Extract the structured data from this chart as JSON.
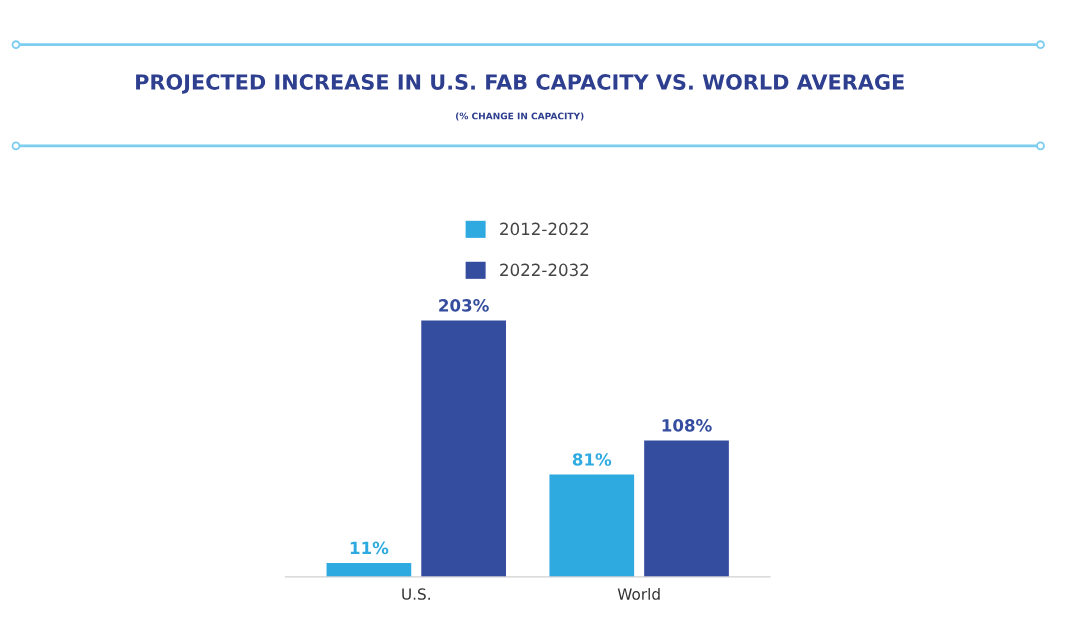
{
  "chart_data": {
    "type": "bar",
    "title": "PROJECTED INCREASE IN U.S. FAB CAPACITY VS. WORLD AVERAGE",
    "subtitle": "(% CHANGE IN CAPACITY)",
    "categories": [
      "U.S.",
      "World"
    ],
    "series": [
      {
        "name": "2012-2022",
        "color": "#2eaae1",
        "values": [
          11,
          81
        ],
        "value_labels": [
          "11%",
          "81%"
        ]
      },
      {
        "name": "2022-2032",
        "color": "#344d9e",
        "values": [
          203,
          108
        ],
        "value_labels": [
          "203%",
          "108%"
        ]
      }
    ],
    "legend": "top",
    "grid": false
  }
}
